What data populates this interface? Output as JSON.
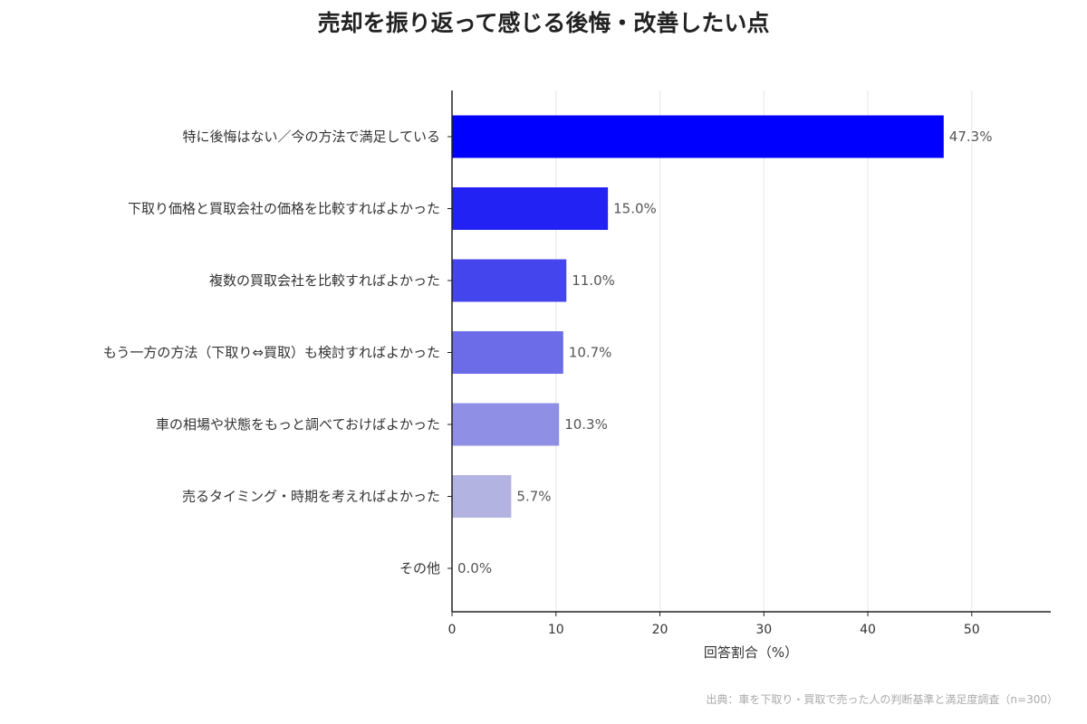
{
  "chart_data": {
    "type": "bar",
    "orientation": "horizontal",
    "title": "売却を振り返って感じる後悔・改善したい点",
    "categories": [
      "特に後悔はない／今の方法で満足している",
      "下取り価格と買取会社の価格を比較すればよかった",
      "複数の買取会社を比較すればよかった",
      "もう一方の方法（下取り⇔買取）も検討すればよかった",
      "車の相場や状態をもっと調べておけばよかった",
      "売るタイミング・時期を考えればよかった",
      "その他"
    ],
    "values": [
      47.3,
      15.0,
      11.0,
      10.7,
      10.3,
      5.7,
      0.0
    ],
    "value_labels": [
      "47.3%",
      "15.0%",
      "11.0%",
      "10.7%",
      "10.3%",
      "5.7%",
      "0.0%"
    ],
    "colors": [
      "#0000ff",
      "#2222f5",
      "#4545ee",
      "#6c6ce8",
      "#8f8fe6",
      "#b3b3e2",
      "#d0d0e8"
    ],
    "xlabel": "回答割合（%）",
    "ylabel": "",
    "xlim": [
      0,
      57.6
    ],
    "xticks": [
      0,
      10,
      20,
      30,
      40,
      50
    ],
    "grid": "vertical",
    "grid_color": "#e6e6ee",
    "source": "出典：車を下取り・買取で売った人の判断基準と満足度調査（n=300）"
  }
}
